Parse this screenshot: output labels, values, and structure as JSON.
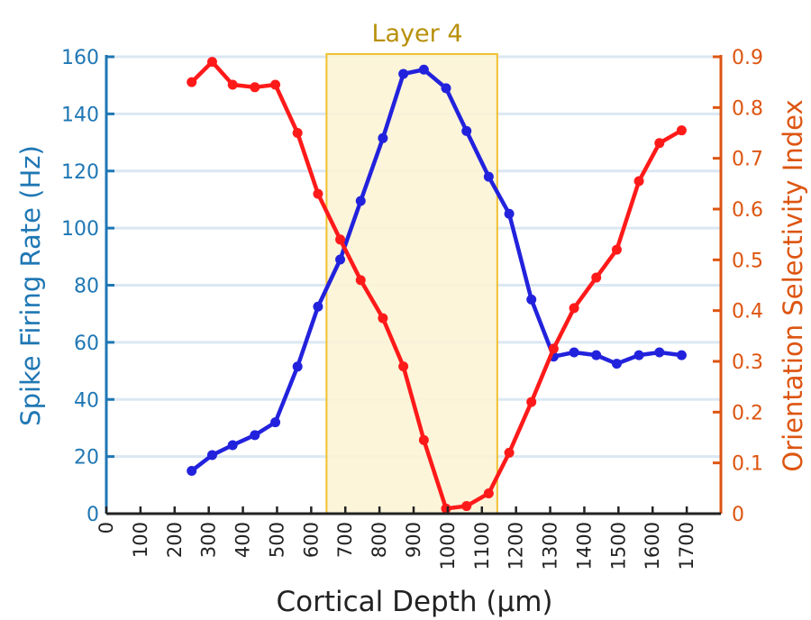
{
  "chart_data": {
    "type": "line",
    "title": "",
    "xlabel": "Cortical Depth (μm)",
    "ylabel_left": "Spike Firing Rate (Hz)",
    "ylabel_right": "Orientation Selectivity Index",
    "xlim": [
      0,
      1800
    ],
    "ylim_left": [
      0,
      160
    ],
    "ylim_right": [
      0,
      0.9
    ],
    "x_ticks": [
      0,
      100,
      200,
      300,
      400,
      500,
      600,
      700,
      800,
      900,
      1000,
      1100,
      1200,
      1300,
      1400,
      1500,
      1600,
      1700
    ],
    "y_left_ticks": [
      0,
      20,
      40,
      60,
      80,
      100,
      120,
      140,
      160
    ],
    "y_right_ticks": [
      0,
      0.1,
      0.2,
      0.3,
      0.4,
      0.5,
      0.6,
      0.7,
      0.8,
      0.9
    ],
    "grid": "horizontal",
    "highlight": {
      "label": "Layer 4",
      "x_range": [
        645,
        1145
      ],
      "color": "#fdf3d3",
      "edge_color": "#f0c030",
      "label_color": "#b8900a"
    },
    "series": [
      {
        "axis": "left",
        "color": "#2222dd",
        "points": [
          [
            250,
            15
          ],
          [
            310,
            20.5
          ],
          [
            370,
            24
          ],
          [
            435,
            27.5
          ],
          [
            495,
            32
          ],
          [
            560,
            51.5
          ],
          [
            620,
            72.5
          ],
          [
            685,
            89
          ],
          [
            745,
            109.5
          ],
          [
            810,
            131.5
          ],
          [
            870,
            154
          ],
          [
            930,
            155.5
          ],
          [
            995,
            149
          ],
          [
            1055,
            134
          ],
          [
            1120,
            118
          ],
          [
            1180,
            105
          ],
          [
            1245,
            75
          ],
          [
            1310,
            55
          ],
          [
            1370,
            56.5
          ],
          [
            1435,
            55.5
          ],
          [
            1495,
            52.5
          ],
          [
            1560,
            55.5
          ],
          [
            1620,
            56.5
          ],
          [
            1685,
            55.5
          ]
        ]
      },
      {
        "axis": "right",
        "color": "#ff1a1a",
        "points": [
          [
            250,
            0.85
          ],
          [
            310,
            0.89
          ],
          [
            370,
            0.845
          ],
          [
            435,
            0.84
          ],
          [
            495,
            0.845
          ],
          [
            560,
            0.75
          ],
          [
            620,
            0.63
          ],
          [
            685,
            0.54
          ],
          [
            745,
            0.46
          ],
          [
            810,
            0.385
          ],
          [
            870,
            0.29
          ],
          [
            930,
            0.145
          ],
          [
            995,
            0.01
          ],
          [
            1055,
            0.015
          ],
          [
            1120,
            0.04
          ],
          [
            1180,
            0.12
          ],
          [
            1245,
            0.22
          ],
          [
            1310,
            0.325
          ],
          [
            1370,
            0.405
          ],
          [
            1435,
            0.465
          ],
          [
            1495,
            0.52
          ],
          [
            1560,
            0.655
          ],
          [
            1620,
            0.73
          ],
          [
            1685,
            0.755
          ]
        ]
      }
    ]
  },
  "colors": {
    "left_axis": "#1f77b4",
    "right_axis": "#dd5511",
    "grid": "#dbe8f3",
    "bottom_axis": "#222222"
  }
}
